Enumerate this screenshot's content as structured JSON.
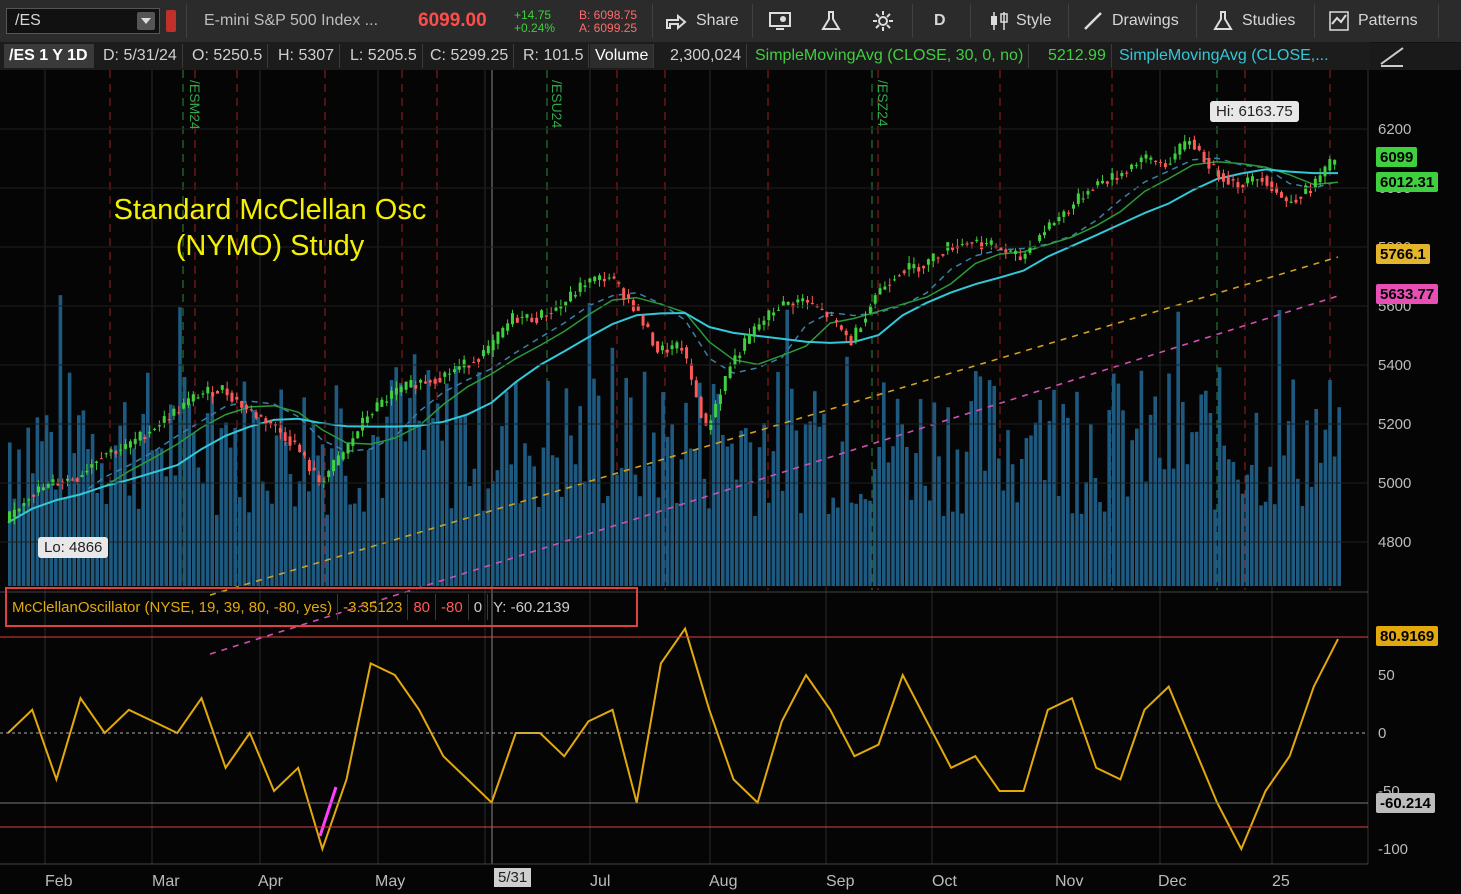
{
  "toolbar": {
    "symbol": "/ES",
    "description": "E-mini S&P 500 Index ...",
    "last_price": "6099.00",
    "change": "+14.75",
    "change_pct": "+0.24%",
    "bid": "B: 6098.75",
    "ask": "A: 6099.25",
    "share": "Share",
    "aggregation": "D",
    "style": "Style",
    "drawings": "Drawings",
    "studies": "Studies",
    "patterns": "Patterns"
  },
  "info": {
    "symbol_period": "/ES 1 Y 1D",
    "date": "D: 5/31/24",
    "open": "O: 5250.5",
    "high": "H: 5307",
    "low": "L: 5205.5",
    "close": "C: 5299.25",
    "range": "R: 101.5",
    "volume_label": "Volume",
    "volume_value": "2,300,024",
    "sma1": "SimpleMovingAvg (CLOSE, 30, 0, no)",
    "sma1_value": "5212.99",
    "sma2": "SimpleMovingAvg (CLOSE,..."
  },
  "annotation": {
    "line1": "Standard McClellan Osc",
    "line2": "(NYMO) Study"
  },
  "price_axis": {
    "ticks": [
      "6200",
      "6000",
      "5800",
      "5600",
      "5400",
      "5200",
      "5000",
      "4800"
    ]
  },
  "price_tags": {
    "last": "6099",
    "sma1": "6012.31",
    "sma2": "5766.1",
    "sma3": "5633.77"
  },
  "markers": {
    "high": "Hi: 6163.75",
    "low": "Lo: 4866"
  },
  "expirations": [
    "/ESM24",
    "/ESU24",
    "/ESZ24"
  ],
  "oscillator": {
    "name": "McClellanOscillator (NYSE, 19, 39, 80, -80, yes)",
    "value": "-3.35123",
    "ob": "80",
    "os": "-80",
    "zero": "0",
    "y": "Y: -60.2139",
    "ticks": [
      "50",
      "0",
      "-50",
      "-100"
    ],
    "tag_last": "80.9169",
    "tag_cursor": "-60.214"
  },
  "time_axis": {
    "labels": [
      "Feb",
      "Mar",
      "Apr",
      "May",
      "Jul",
      "Aug",
      "Sep",
      "Oct",
      "Nov",
      "Dec",
      "25"
    ],
    "cursor": "5/31"
  },
  "colors": {
    "up": "#3fcf3f",
    "down": "#ff5a5a",
    "volume": "#1e5a80",
    "osc": "#e3a90c",
    "accent_pink": "#ff3fff",
    "border": "#e04040"
  },
  "chart_data": {
    "type": "line",
    "series": [
      {
        "name": "/ES",
        "values": [
          4866,
          4960,
          5000,
          5020,
          5100,
          5120,
          5180,
          5240,
          5300,
          5320,
          5250,
          5200,
          5130,
          5000,
          5100,
          5230,
          5300,
          5340,
          5360,
          5400,
          5450,
          5560,
          5560,
          5600,
          5680,
          5700,
          5600,
          5450,
          5460,
          5180,
          5400,
          5520,
          5600,
          5620,
          5570,
          5480,
          5640,
          5720,
          5740,
          5800,
          5820,
          5800,
          5760,
          5860,
          5930,
          6010,
          6040,
          6100,
          6080,
          6163.75,
          6060,
          6010,
          6040,
          5950,
          6000,
          6099
        ]
      },
      {
        "name": "McClellanOscillator",
        "values": [
          0,
          20,
          -40,
          30,
          0,
          20,
          10,
          0,
          30,
          -30,
          0,
          -50,
          -30,
          -100,
          -40,
          60,
          50,
          20,
          -20,
          -40,
          -60,
          0,
          0,
          -20,
          10,
          20,
          -60,
          60,
          90,
          20,
          -40,
          -60,
          10,
          50,
          20,
          -20,
          -10,
          50,
          10,
          -30,
          -20,
          -50,
          -50,
          20,
          30,
          -30,
          -40,
          20,
          40,
          -10,
          -60,
          -100,
          -50,
          -20,
          40,
          80.9169
        ]
      }
    ]
  }
}
